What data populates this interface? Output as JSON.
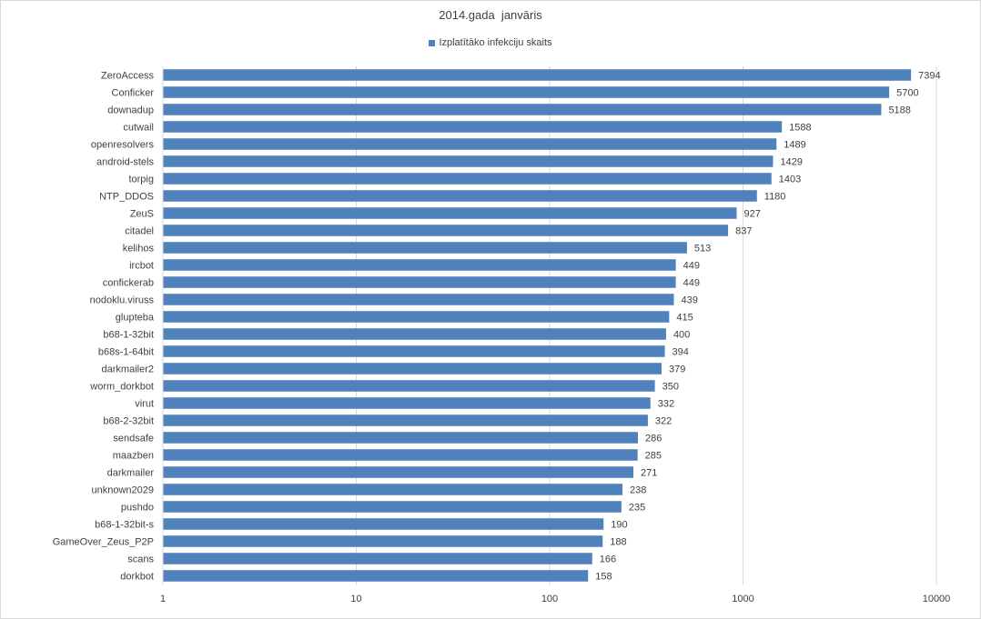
{
  "chart_data": {
    "type": "bar",
    "orientation": "horizontal",
    "title": "2014.gada  janvāris",
    "series": [
      {
        "name": "Izplatītāko infekciju skaits",
        "values": [
          7394,
          5700,
          5188,
          1588,
          1489,
          1429,
          1403,
          1180,
          927,
          837,
          513,
          449,
          449,
          439,
          415,
          400,
          394,
          379,
          350,
          332,
          322,
          286,
          285,
          271,
          238,
          235,
          190,
          188,
          166,
          158
        ]
      }
    ],
    "categories": [
      "ZeroAccess",
      "Conficker",
      "downadup",
      "cutwail",
      "openresolvers",
      "android-stels",
      "torpig",
      "NTP_DDOS",
      "ZeuS",
      "citadel",
      "kelihos",
      "ircbot",
      "confickerab",
      "nodoklu.viruss",
      "glupteba",
      "b68-1-32bit",
      "b68s-1-64bit",
      "darkmailer2",
      "worm_dorkbot",
      "virut",
      "b68-2-32bit",
      "sendsafe",
      "maazben",
      "darkmailer",
      "unknown2029",
      "pushdo",
      "b68-1-32bit-s",
      "GameOver_Zeus_P2P",
      "scans",
      "dorkbot"
    ],
    "x_scale": "log",
    "xlim": [
      1,
      10000
    ],
    "x_ticks": [
      "1",
      "10",
      "100",
      "1000",
      "10000"
    ],
    "grid": true,
    "legend_position": "top",
    "data_labels": true,
    "bar_color": "#4f81bd"
  }
}
